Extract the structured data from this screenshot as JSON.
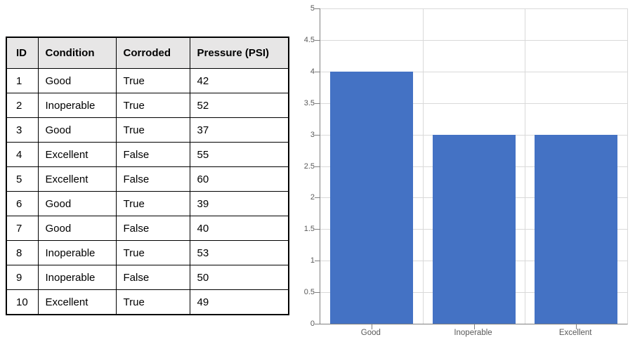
{
  "table": {
    "headers": [
      "ID",
      "Condition",
      "Corroded",
      "Pressure (PSI)"
    ],
    "rows": [
      [
        "1",
        "Good",
        "True",
        "42"
      ],
      [
        "2",
        "Inoperable",
        "True",
        "52"
      ],
      [
        "3",
        "Good",
        "True",
        "37"
      ],
      [
        "4",
        "Excellent",
        "False",
        "55"
      ],
      [
        "5",
        "Excellent",
        "False",
        "60"
      ],
      [
        "6",
        "Good",
        "True",
        "39"
      ],
      [
        "7",
        "Good",
        "False",
        "40"
      ],
      [
        "8",
        "Inoperable",
        "True",
        "53"
      ],
      [
        "9",
        "Inoperable",
        "False",
        "50"
      ],
      [
        "10",
        "Excellent",
        "True",
        "49"
      ]
    ],
    "header_bg": "#E7E6E6",
    "border_color": "#000000"
  },
  "chart_data": {
    "type": "bar",
    "categories": [
      "Good",
      "Inoperable",
      "Excellent"
    ],
    "values": [
      4,
      3,
      3
    ],
    "title": "",
    "xlabel": "",
    "ylabel": "",
    "ylim": [
      0,
      5
    ],
    "ytick_step": 0.5,
    "ytick_labels": [
      "0",
      "0.5",
      "1",
      "1.5",
      "2",
      "2.5",
      "3",
      "3.5",
      "4",
      "4.5",
      "5"
    ],
    "grid": "on",
    "legend_position": "none",
    "bar_color": "#4472C4",
    "gridline_color": "#D9D9D9",
    "axis_color": "#808080",
    "label_color": "#595959"
  }
}
